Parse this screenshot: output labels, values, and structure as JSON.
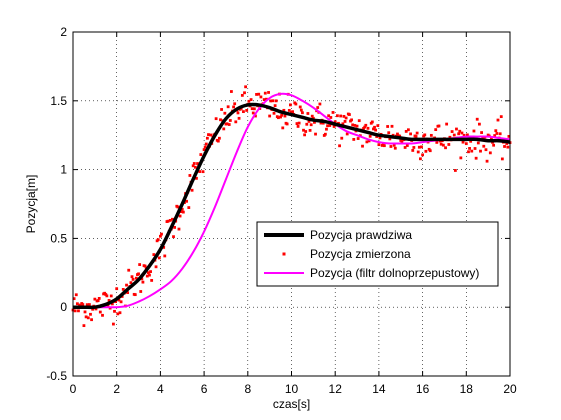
{
  "chart_data": {
    "type": "line",
    "title": "",
    "xlabel": "czas[s]",
    "ylabel": "Pozycja[m]",
    "xlim": [
      0,
      20
    ],
    "ylim": [
      -0.5,
      2
    ],
    "xticks": [
      0,
      2,
      4,
      6,
      8,
      10,
      12,
      14,
      16,
      18,
      20
    ],
    "yticks": [
      -0.5,
      0,
      0.5,
      1,
      1.5,
      2
    ],
    "xtick_labels": [
      "0",
      "2",
      "4",
      "6",
      "8",
      "10",
      "12",
      "14",
      "16",
      "18",
      "20"
    ],
    "ytick_labels": [
      "-0.5",
      "0",
      "0.5",
      "1",
      "1.5",
      "2"
    ],
    "grid": true,
    "legend_position": "lower-right",
    "series": [
      {
        "name": "Pozycja prawdziwa",
        "kind": "line",
        "color": "#000000",
        "x": [
          0,
          0.5,
          1,
          1.5,
          2,
          2.5,
          3,
          3.5,
          4,
          4.5,
          5,
          5.5,
          6,
          6.5,
          7,
          7.5,
          8,
          8.5,
          9,
          9.5,
          10,
          10.5,
          11,
          11.5,
          12,
          12.5,
          13,
          13.5,
          14,
          14.5,
          15,
          15.5,
          16,
          16.5,
          17,
          17.5,
          18,
          18.5,
          19,
          19.5,
          20
        ],
        "y": [
          0,
          0,
          0,
          0.02,
          0.06,
          0.13,
          0.2,
          0.3,
          0.42,
          0.58,
          0.75,
          0.93,
          1.1,
          1.25,
          1.37,
          1.44,
          1.47,
          1.47,
          1.45,
          1.42,
          1.4,
          1.38,
          1.36,
          1.35,
          1.33,
          1.31,
          1.29,
          1.27,
          1.25,
          1.24,
          1.23,
          1.22,
          1.22,
          1.22,
          1.22,
          1.22,
          1.22,
          1.22,
          1.21,
          1.21,
          1.2
        ]
      },
      {
        "name": "Pozycja zmierzona",
        "kind": "scatter",
        "color": "#ff0000",
        "noise_std": 0.065,
        "samples_per_unit": 20
      },
      {
        "name": "Pozycja (filtr dolnoprzepustowy)",
        "kind": "line",
        "color": "#ff00ff",
        "x": [
          0,
          0.5,
          1,
          1.5,
          2,
          2.5,
          3,
          3.5,
          4,
          4.5,
          5,
          5.5,
          6,
          6.5,
          7,
          7.5,
          8,
          8.5,
          9,
          9.5,
          10,
          10.5,
          11,
          11.5,
          12,
          12.5,
          13,
          13.5,
          14,
          14.5,
          15,
          15.5,
          16,
          16.5,
          17,
          17.5,
          18,
          18.5,
          19,
          19.5,
          20
        ],
        "y": [
          0,
          0,
          0,
          0,
          0,
          0.01,
          0.04,
          0.08,
          0.13,
          0.19,
          0.28,
          0.4,
          0.55,
          0.73,
          0.93,
          1.13,
          1.31,
          1.44,
          1.52,
          1.55,
          1.54,
          1.5,
          1.45,
          1.39,
          1.33,
          1.28,
          1.25,
          1.22,
          1.2,
          1.19,
          1.19,
          1.19,
          1.2,
          1.21,
          1.22,
          1.23,
          1.24,
          1.24,
          1.24,
          1.23,
          1.22
        ]
      }
    ]
  }
}
